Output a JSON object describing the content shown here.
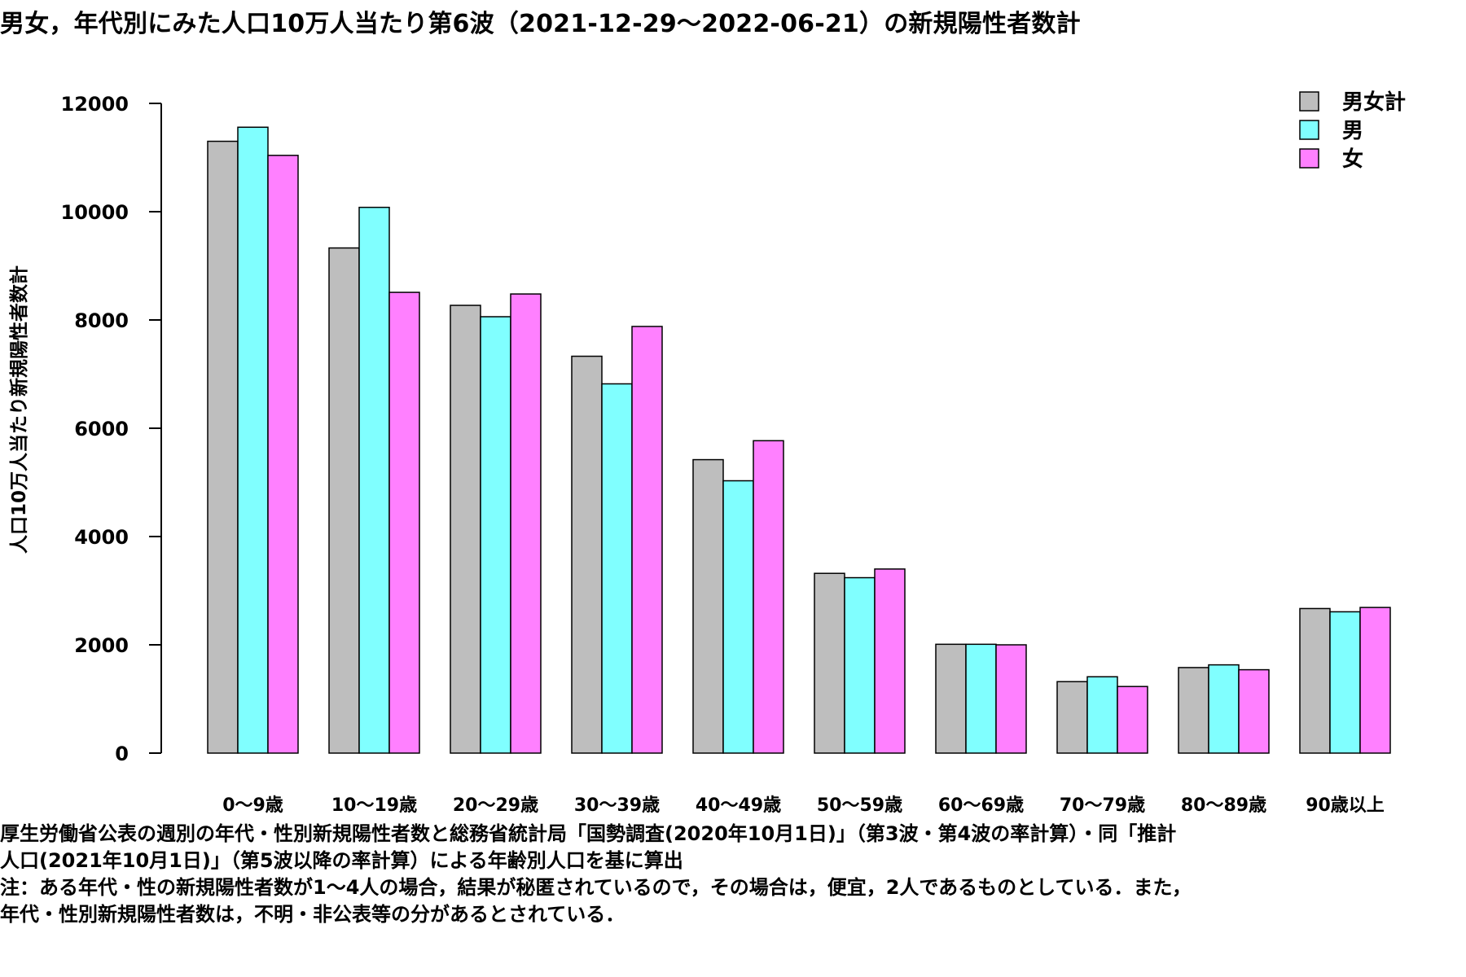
{
  "title": "男女，年代別にみた人口10万人当たり第6波（2021-12-29〜2022-06-21）の新規陽性者数計",
  "footnote": {
    "lines": [
      "厚生労働省公表の週別の年代・性別新規陽性者数と総務省統計局「国勢調査(2020年10月1日)」（第3波・第4波の率計算）・同「推計",
      "人口(2021年10月1日)」（第5波以降の率計算）による年齢別人口を基に算出",
      "注：ある年代・性の新規陽性者数が1〜4人の場合，結果が秘匿されているので，その場合は，便宜，2人であるものとしている．また，",
      "年代・性別新規陽性者数は，不明・非公表等の分があるとされている．"
    ]
  },
  "chart_data": {
    "type": "bar",
    "title": "男女，年代別にみた人口10万人当たり第6波（2021-12-29〜2022-06-21）の新規陽性者数計",
    "xlabel": "",
    "ylabel": "人口10万人当たり新規陽性者数計",
    "ylim": [
      0,
      12000
    ],
    "yticks": [
      0,
      2000,
      4000,
      6000,
      8000,
      10000,
      12000
    ],
    "grid": false,
    "legend_position": "top-right",
    "categories": [
      "0〜9歳",
      "10〜19歳",
      "20〜29歳",
      "30〜39歳",
      "40〜49歳",
      "50〜59歳",
      "60〜69歳",
      "70〜79歳",
      "80〜89歳",
      "90歳以上"
    ],
    "series": [
      {
        "name": "男女計",
        "color": "#bebebe",
        "values": [
          11300,
          9330,
          8270,
          7330,
          5420,
          3320,
          2010,
          1320,
          1580,
          2670
        ]
      },
      {
        "name": "男",
        "color": "#80ffff",
        "values": [
          11560,
          10080,
          8060,
          6820,
          5030,
          3240,
          2010,
          1410,
          1630,
          2610
        ]
      },
      {
        "name": "女",
        "color": "#ff80ff",
        "values": [
          11040,
          8510,
          8480,
          7880,
          5770,
          3400,
          2000,
          1230,
          1540,
          2690
        ]
      }
    ]
  }
}
